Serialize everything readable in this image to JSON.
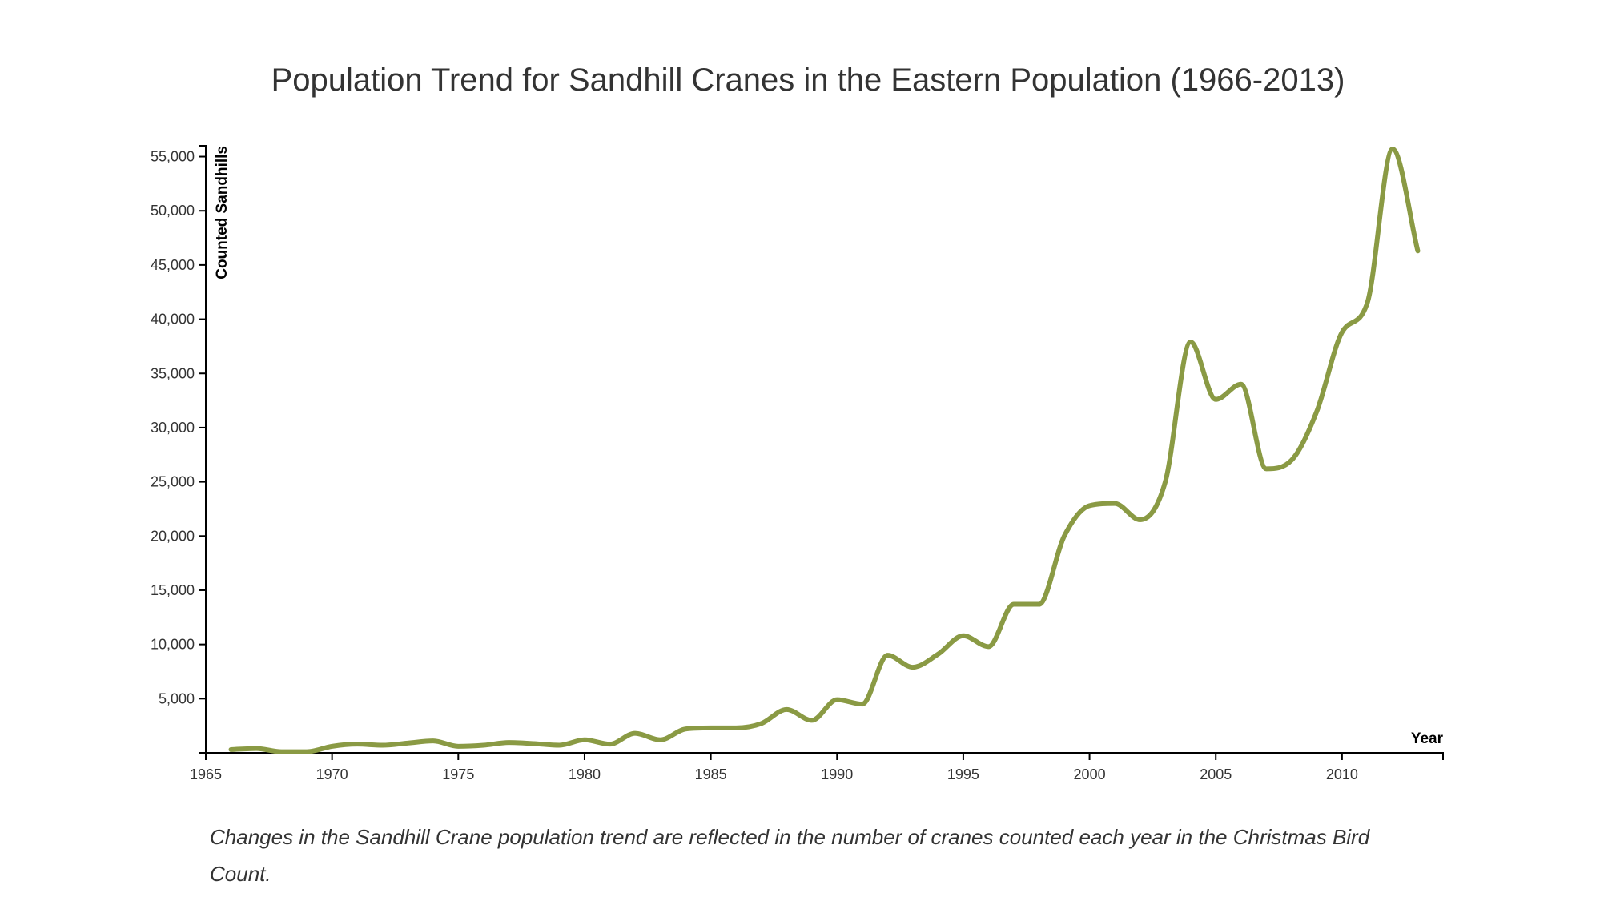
{
  "chart_data": {
    "type": "line",
    "title": "Population Trend for Sandhill Cranes in the Eastern Population (1966-2013)",
    "xlabel": "Year",
    "ylabel": "Counted Sandhills",
    "xlim": [
      1965,
      2014
    ],
    "ylim": [
      0,
      56000
    ],
    "x_ticks": [
      1965,
      1970,
      1975,
      1980,
      1985,
      1990,
      1995,
      2000,
      2005,
      2010
    ],
    "y_ticks": [
      5000,
      10000,
      15000,
      20000,
      25000,
      30000,
      35000,
      40000,
      45000,
      50000,
      55000
    ],
    "x_tick_labels": [
      "1965",
      "1970",
      "1975",
      "1980",
      "1985",
      "1990",
      "1995",
      "2000",
      "2005",
      "2010"
    ],
    "y_tick_labels": [
      "5,000",
      "10,000",
      "15,000",
      "20,000",
      "25,000",
      "30,000",
      "35,000",
      "40,000",
      "45,000",
      "50,000",
      "55,000"
    ],
    "grid": false,
    "series": [
      {
        "color": "#8a9a44",
        "x": [
          1966,
          1967,
          1968,
          1969,
          1970,
          1971,
          1972,
          1973,
          1974,
          1975,
          1976,
          1977,
          1978,
          1979,
          1980,
          1981,
          1982,
          1983,
          1984,
          1985,
          1986,
          1987,
          1988,
          1989,
          1990,
          1991,
          1992,
          1993,
          1994,
          1995,
          1996,
          1997,
          1998,
          1999,
          2000,
          2001,
          2002,
          2003,
          2004,
          2005,
          2006,
          2007,
          2008,
          2009,
          2010,
          2011,
          2012,
          2013
        ],
        "values": [
          300,
          400,
          100,
          100,
          600,
          800,
          700,
          900,
          1100,
          600,
          700,
          950,
          850,
          700,
          1200,
          800,
          1800,
          1200,
          2200,
          2300,
          2300,
          2700,
          4000,
          3000,
          4900,
          4500,
          9000,
          7900,
          9100,
          10800,
          9800,
          13700,
          13700,
          20000,
          22800,
          23000,
          21500,
          25000,
          37900,
          32600,
          34000,
          26200,
          27000,
          31500,
          38800,
          41500,
          55700,
          46300
        ]
      }
    ]
  },
  "caption": "Changes in the Sandhill Crane population trend are reflected in the number of cranes counted each year in the Christmas Bird Count."
}
